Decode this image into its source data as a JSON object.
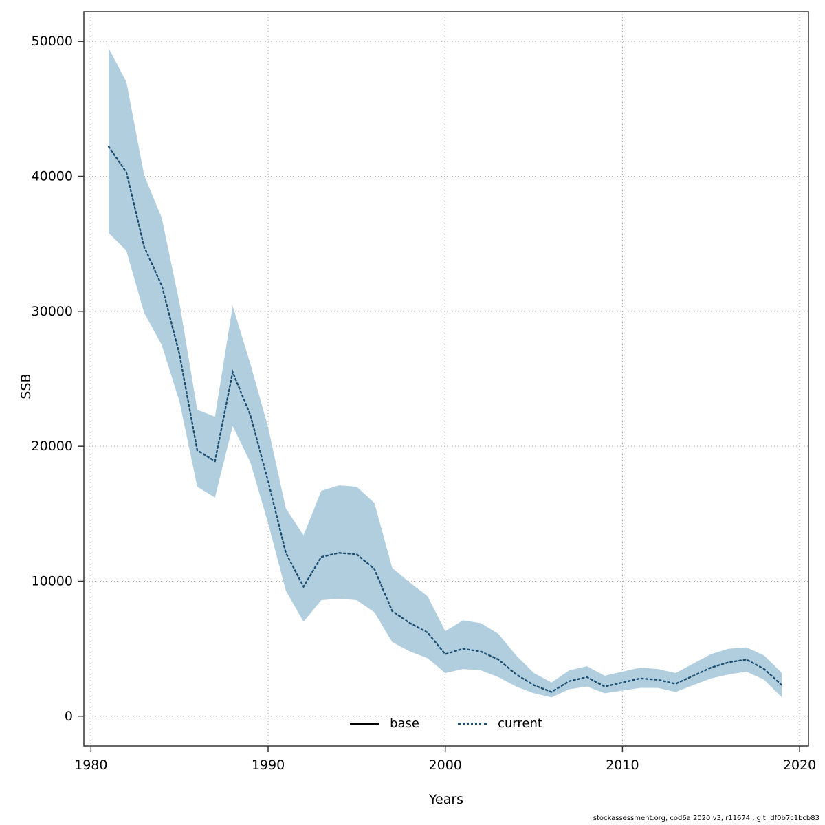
{
  "chart_data": {
    "type": "line",
    "title": "",
    "xlabel": "Years",
    "ylabel": "SSB",
    "grid": true,
    "legend_position": "bottom-center-inside",
    "x_ticks": [
      1980,
      1990,
      2000,
      2010,
      2020
    ],
    "y_ticks": [
      0,
      10000,
      20000,
      30000,
      40000,
      50000
    ],
    "xlim": [
      1979.6,
      2020.5
    ],
    "ylim": [
      -2200,
      52200
    ],
    "x": [
      1981,
      1982,
      1983,
      1984,
      1985,
      1986,
      1987,
      1988,
      1989,
      1990,
      1991,
      1992,
      1993,
      1994,
      1995,
      1996,
      1997,
      1998,
      1999,
      2000,
      2001,
      2002,
      2003,
      2004,
      2005,
      2006,
      2007,
      2008,
      2009,
      2010,
      2011,
      2012,
      2013,
      2014,
      2015,
      2016,
      2017,
      2018,
      2019
    ],
    "series": [
      {
        "name": "current",
        "style": "dotted",
        "color": "#1c4f72",
        "values": [
          42200,
          40300,
          34800,
          31900,
          26800,
          19700,
          18900,
          25500,
          22300,
          17400,
          12100,
          9600,
          11800,
          12100,
          12000,
          10900,
          7800,
          6900,
          6200,
          4600,
          5000,
          4800,
          4200,
          3100,
          2300,
          1800,
          2600,
          2900,
          2200,
          2500,
          2800,
          2700,
          2400,
          3000,
          3600,
          4000,
          4200,
          3500,
          2300
        ]
      }
    ],
    "band": {
      "name": "confidence-interval",
      "color": "#a9c9dc",
      "upper": [
        49500,
        47000,
        40100,
        36900,
        30600,
        22700,
        22200,
        30400,
        26100,
        21400,
        15400,
        13400,
        16700,
        17100,
        17000,
        15800,
        11000,
        9900,
        8900,
        6300,
        7100,
        6900,
        6100,
        4500,
        3200,
        2500,
        3400,
        3700,
        3000,
        3300,
        3600,
        3500,
        3200,
        3900,
        4600,
        5000,
        5100,
        4500,
        3200
      ],
      "lower": [
        35800,
        34500,
        29900,
        27500,
        23300,
        17000,
        16200,
        21500,
        18800,
        14300,
        9300,
        7000,
        8600,
        8700,
        8600,
        7700,
        5500,
        4800,
        4300,
        3200,
        3500,
        3400,
        2900,
        2200,
        1700,
        1400,
        2000,
        2200,
        1700,
        1900,
        2100,
        2100,
        1800,
        2300,
        2800,
        3100,
        3300,
        2700,
        1400
      ]
    },
    "legend": [
      {
        "label": "base",
        "style": "solid",
        "color": "#000000"
      },
      {
        "label": "current",
        "style": "dotted",
        "color": "#1c4f72"
      }
    ],
    "colors": {
      "grid": "#b3b3b3",
      "axis": "#333333",
      "band_fill": "#a9c9dc",
      "line": "#1c4f72"
    }
  },
  "footer": {
    "text": "stockassessment.org, cod6a 2020 v3, r11674 , git: df0b7c1bcb83"
  }
}
